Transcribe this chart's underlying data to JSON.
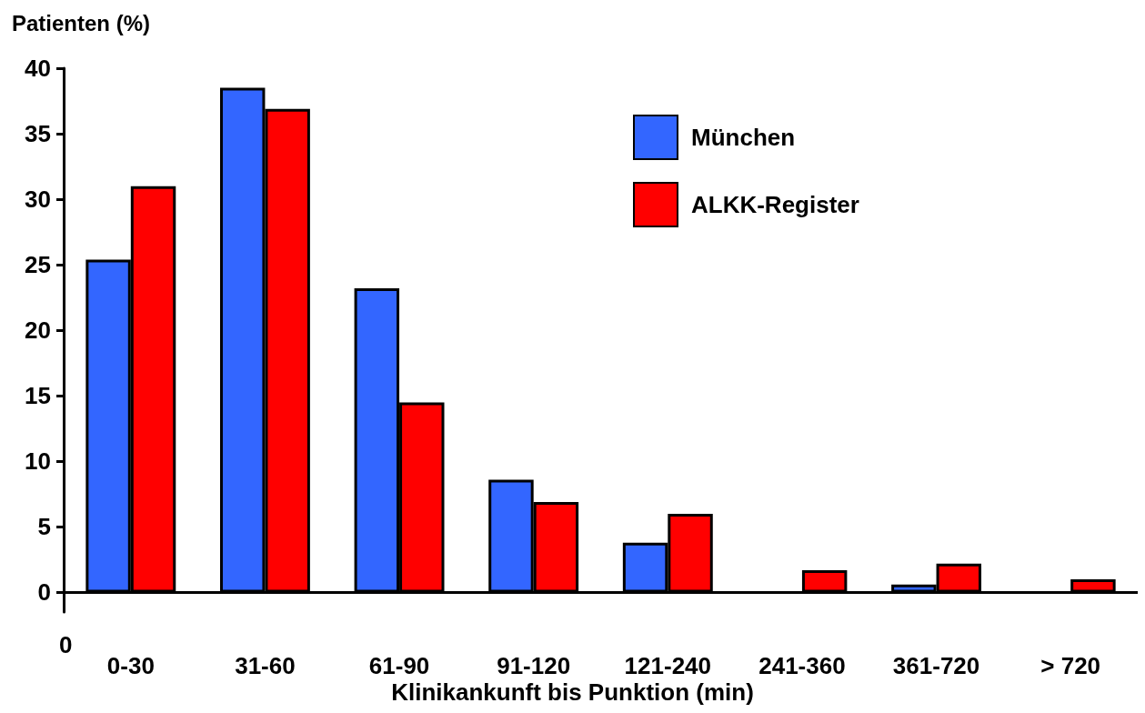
{
  "chart_data": {
    "type": "bar",
    "ylabel": "Patienten (%)",
    "xlabel": "Klinikankunft bis Punktion (min)",
    "categories": [
      "0-30",
      "31-60",
      "61-90",
      "91-120",
      "121-240",
      "241-360",
      "361-720",
      "> 720"
    ],
    "series": [
      {
        "name": "München",
        "color": "#3366ff",
        "values": [
          25.4,
          38.5,
          23.2,
          8.6,
          3.8,
          null,
          0.6,
          null
        ]
      },
      {
        "name": "ALKK-Register",
        "color": "#ff0000",
        "values": [
          31.0,
          36.9,
          14.5,
          6.9,
          6.0,
          1.7,
          2.2,
          1.0
        ]
      }
    ],
    "ylim": [
      -1.5,
      40
    ],
    "yticks": [
      0,
      5,
      10,
      15,
      20,
      25,
      30,
      35,
      40
    ],
    "annotations": [
      "0"
    ],
    "grid": false,
    "legend": "top right"
  }
}
